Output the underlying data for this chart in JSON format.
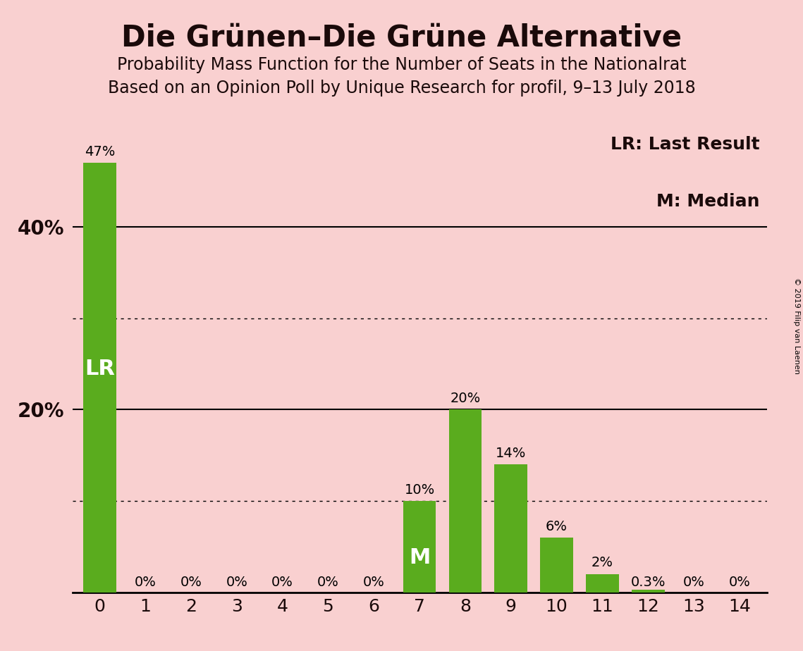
{
  "title": "Die Grünen–Die Grüne Alternative",
  "subtitle1": "Probability Mass Function for the Number of Seats in the Nationalrat",
  "subtitle2": "Based on an Opinion Poll by Unique Research for profil, 9–13 July 2018",
  "copyright": "© 2019 Filip van Laenen",
  "categories": [
    0,
    1,
    2,
    3,
    4,
    5,
    6,
    7,
    8,
    9,
    10,
    11,
    12,
    13,
    14
  ],
  "values": [
    47,
    0,
    0,
    0,
    0,
    0,
    0,
    10,
    20,
    14,
    6,
    2,
    0.3,
    0,
    0
  ],
  "bar_color": "#5aac1e",
  "background_color": "#f9d0d0",
  "text_color": "#1a0a0a",
  "label_texts": [
    "47%",
    "0%",
    "0%",
    "0%",
    "0%",
    "0%",
    "0%",
    "10%",
    "20%",
    "14%",
    "6%",
    "2%",
    "0.3%",
    "0%",
    "0%"
  ],
  "lr_bar_index": 0,
  "median_bar_index": 7,
  "lr_label": "LR",
  "median_label": "M",
  "legend_lr": "LR: Last Result",
  "legend_m": "M: Median",
  "yticks": [
    20,
    40
  ],
  "ytick_labels": [
    "20%",
    "40%"
  ],
  "ymax": 52,
  "solid_grid_lines": [
    20,
    40
  ],
  "dotted_grid_lines": [
    10,
    30
  ],
  "title_fontsize": 30,
  "subtitle_fontsize": 17
}
